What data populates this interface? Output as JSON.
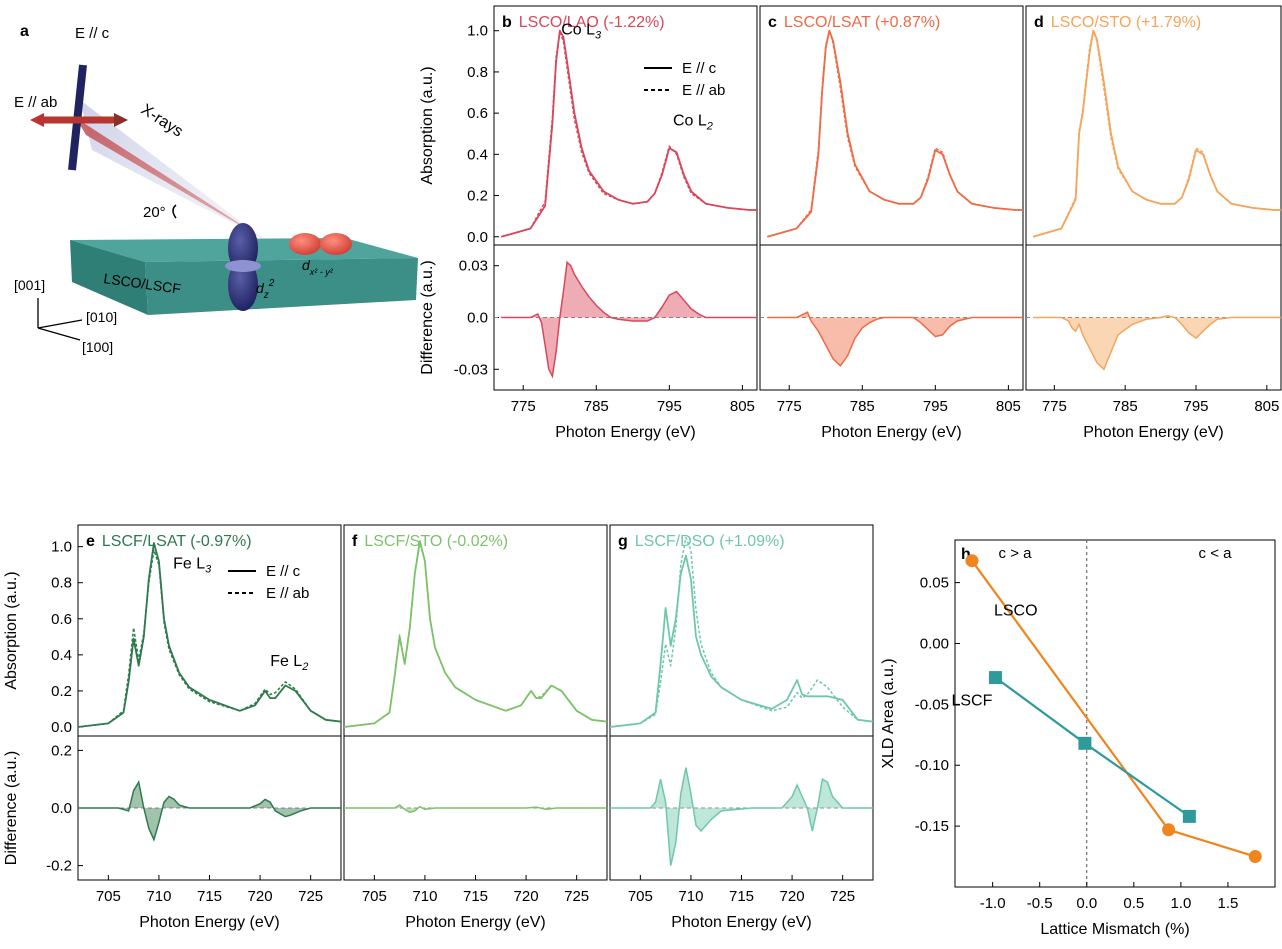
{
  "panel_a": {
    "label": "a",
    "e_c": "E // c",
    "e_ab": "E // ab",
    "xrays": "X-rays",
    "angle": "20°",
    "sample": "LSCO/LSCF",
    "dz2": "d",
    "dz2_sub": "z",
    "dz2_sup": "2",
    "dx2y2": "d",
    "dx2y2_sub": "x² - y²",
    "dx2y2_sup": "2",
    "axis_001": "[001]",
    "axis_010": "[010]",
    "axis_100": "[100]"
  },
  "legend": {
    "solid": "E // c",
    "dashed": "E // ab"
  },
  "chart_data": [
    {
      "id": "b",
      "type": "line",
      "label": "b",
      "title": "LSCO/LAO (-1.22%)",
      "color": "#d9475b",
      "xlabel": "Photon Energy (eV)",
      "xlim": [
        771,
        807
      ],
      "xticks": [
        775,
        785,
        795,
        805
      ],
      "abs_ylabel": "Absorption (a.u.)",
      "abs_ylim": [
        -0.04,
        1.12
      ],
      "abs_yticks": [
        0.0,
        0.2,
        0.4,
        0.6,
        0.8,
        1.0
      ],
      "diff_ylabel": "Difference (a.u.)",
      "diff_ylim": [
        -0.042,
        0.042
      ],
      "diff_yticks": [
        -0.03,
        0.0,
        0.03
      ],
      "annotations": [
        {
          "text": "Co L",
          "sub": "3",
          "x": 780.2,
          "y": 1.0
        },
        {
          "text": "Co L",
          "sub": "2",
          "x": 795.5,
          "y": 0.56
        }
      ],
      "absorption": {
        "x": [
          772,
          776,
          778,
          779,
          779.5,
          780,
          780.5,
          781,
          782,
          783,
          784,
          786,
          788,
          790,
          792,
          793,
          794,
          795,
          796,
          797,
          798,
          800,
          803,
          806,
          807
        ],
        "e_c": [
          0.0,
          0.04,
          0.15,
          0.55,
          0.85,
          1.0,
          0.97,
          0.85,
          0.6,
          0.43,
          0.32,
          0.22,
          0.18,
          0.16,
          0.17,
          0.21,
          0.3,
          0.43,
          0.41,
          0.3,
          0.22,
          0.16,
          0.14,
          0.13,
          0.13
        ],
        "e_ab": [
          0.0,
          0.04,
          0.17,
          0.58,
          0.87,
          0.99,
          0.95,
          0.82,
          0.57,
          0.41,
          0.31,
          0.21,
          0.18,
          0.16,
          0.17,
          0.21,
          0.31,
          0.44,
          0.4,
          0.29,
          0.21,
          0.16,
          0.14,
          0.13,
          0.13
        ]
      },
      "difference": {
        "x": [
          772,
          776,
          777,
          777.5,
          778,
          778.5,
          779,
          779.5,
          780,
          780.5,
          781,
          781.5,
          782,
          783,
          784,
          785,
          786,
          787,
          788,
          790,
          792,
          793,
          794,
          795,
          796,
          797,
          798,
          799,
          800,
          803,
          806,
          807
        ],
        "y": [
          0.0,
          0.0,
          0.002,
          -0.003,
          -0.016,
          -0.03,
          -0.034,
          -0.02,
          0.0,
          0.015,
          0.032,
          0.03,
          0.025,
          0.018,
          0.012,
          0.007,
          0.003,
          0.0,
          -0.001,
          -0.002,
          -0.002,
          0.0,
          0.006,
          0.013,
          0.015,
          0.01,
          0.005,
          0.002,
          0.0,
          0.0,
          0.0,
          0.0
        ]
      }
    },
    {
      "id": "c",
      "type": "line",
      "label": "c",
      "title": "LSCO/LSAT (+0.87%)",
      "color": "#ef6a45",
      "xlabel": "Photon Energy (eV)",
      "xlim": [
        771,
        807
      ],
      "xticks": [
        775,
        785,
        795,
        805
      ],
      "abs_ylim": [
        -0.04,
        1.12
      ],
      "diff_ylim": [
        -0.042,
        0.042
      ],
      "absorption": {
        "x": [
          772,
          776,
          778,
          779,
          779.5,
          780,
          780.5,
          781,
          782,
          783,
          784,
          786,
          788,
          790,
          792,
          793,
          794,
          795,
          796,
          797,
          798,
          800,
          803,
          806,
          807
        ],
        "e_c": [
          0.0,
          0.04,
          0.12,
          0.4,
          0.7,
          0.92,
          1.0,
          0.95,
          0.75,
          0.5,
          0.35,
          0.22,
          0.18,
          0.16,
          0.16,
          0.19,
          0.28,
          0.42,
          0.4,
          0.3,
          0.22,
          0.16,
          0.14,
          0.13,
          0.13
        ],
        "e_ab": [
          0.0,
          0.04,
          0.13,
          0.42,
          0.72,
          0.93,
          1.0,
          0.94,
          0.72,
          0.48,
          0.34,
          0.22,
          0.18,
          0.16,
          0.16,
          0.19,
          0.29,
          0.43,
          0.41,
          0.3,
          0.22,
          0.16,
          0.14,
          0.13,
          0.13
        ]
      },
      "difference": {
        "x": [
          772,
          776,
          777,
          777.5,
          778,
          779,
          780,
          781,
          782,
          783,
          784,
          785,
          786,
          787,
          788,
          790,
          792,
          793,
          794,
          795,
          796,
          797,
          798,
          800,
          803,
          806,
          807
        ],
        "y": [
          0.0,
          0.0,
          0.002,
          0.003,
          -0.002,
          -0.008,
          -0.016,
          -0.024,
          -0.028,
          -0.022,
          -0.012,
          -0.006,
          -0.003,
          -0.001,
          0.0,
          0.0,
          0.0,
          -0.003,
          -0.007,
          -0.011,
          -0.01,
          -0.005,
          -0.002,
          0.0,
          0.0,
          0.0,
          0.0
        ]
      }
    },
    {
      "id": "d",
      "type": "line",
      "label": "d",
      "title": "LSCO/STO (+1.79%)",
      "color": "#f5a45a",
      "xlabel": "Photon Energy (eV)",
      "xlim": [
        771,
        807
      ],
      "xticks": [
        775,
        785,
        795,
        805
      ],
      "abs_ylim": [
        -0.04,
        1.12
      ],
      "diff_ylim": [
        -0.042,
        0.042
      ],
      "absorption": {
        "x": [
          772,
          776,
          778,
          778.5,
          779,
          779.5,
          780,
          780.5,
          781,
          782,
          783,
          784,
          786,
          788,
          790,
          792,
          793,
          794,
          795,
          796,
          797,
          798,
          800,
          803,
          806,
          807
        ],
        "e_c": [
          0.0,
          0.04,
          0.18,
          0.5,
          0.6,
          0.75,
          0.9,
          1.0,
          0.96,
          0.75,
          0.5,
          0.34,
          0.22,
          0.18,
          0.16,
          0.16,
          0.19,
          0.28,
          0.42,
          0.4,
          0.3,
          0.22,
          0.16,
          0.14,
          0.13,
          0.13
        ],
        "e_ab": [
          0.0,
          0.04,
          0.19,
          0.51,
          0.61,
          0.77,
          0.92,
          1.0,
          0.95,
          0.72,
          0.48,
          0.33,
          0.22,
          0.18,
          0.16,
          0.16,
          0.19,
          0.29,
          0.43,
          0.41,
          0.3,
          0.22,
          0.16,
          0.14,
          0.13,
          0.13
        ]
      },
      "difference": {
        "x": [
          772,
          776,
          777,
          777.5,
          778,
          778.5,
          779,
          780,
          781,
          782,
          783,
          784,
          786,
          788,
          790,
          791,
          792,
          793,
          794,
          795,
          796,
          797,
          798,
          800,
          803,
          806,
          807
        ],
        "y": [
          0.0,
          0.0,
          -0.002,
          -0.006,
          -0.008,
          -0.004,
          -0.01,
          -0.018,
          -0.026,
          -0.03,
          -0.02,
          -0.01,
          -0.004,
          -0.001,
          0.0,
          0.001,
          0.0,
          -0.004,
          -0.009,
          -0.012,
          -0.008,
          -0.004,
          -0.001,
          0.0,
          0.0,
          0.0,
          0.0
        ]
      }
    },
    {
      "id": "e",
      "type": "line",
      "label": "e",
      "title": "LSCF/LSAT (-0.97%)",
      "color": "#2e7a4c",
      "xlabel": "Photon Energy (eV)",
      "xlim": [
        702,
        728
      ],
      "xticks": [
        705,
        710,
        715,
        720,
        725
      ],
      "abs_ylabel": "Absorption (a.u.)",
      "abs_ylim": [
        -0.05,
        1.12
      ],
      "abs_yticks": [
        0.0,
        0.2,
        0.4,
        0.6,
        0.8,
        1.0
      ],
      "diff_ylabel": "Difference (a.u.)",
      "diff_ylim": [
        -0.25,
        0.25
      ],
      "diff_yticks": [
        -0.2,
        0.0,
        0.2
      ],
      "annotations": [
        {
          "text": "Fe L",
          "sub": "3",
          "x": 711.4,
          "y": 0.9
        },
        {
          "text": "Fe L",
          "sub": "2",
          "x": 721.0,
          "y": 0.36
        }
      ],
      "absorption": {
        "x": [
          702,
          705,
          706.5,
          707,
          707.5,
          708,
          708.5,
          709,
          709.5,
          710,
          710.5,
          711,
          712,
          713,
          715,
          718,
          719.5,
          720.5,
          721,
          721.5,
          722.5,
          723.5,
          725,
          726.5,
          728
        ],
        "e_c": [
          0.0,
          0.02,
          0.08,
          0.25,
          0.49,
          0.34,
          0.5,
          0.82,
          1.02,
          0.92,
          0.6,
          0.45,
          0.3,
          0.22,
          0.15,
          0.09,
          0.12,
          0.2,
          0.16,
          0.16,
          0.23,
          0.2,
          0.09,
          0.04,
          0.03
        ],
        "e_ab": [
          0.0,
          0.02,
          0.09,
          0.29,
          0.55,
          0.37,
          0.52,
          0.8,
          0.98,
          0.9,
          0.58,
          0.43,
          0.29,
          0.21,
          0.14,
          0.09,
          0.13,
          0.21,
          0.18,
          0.19,
          0.25,
          0.21,
          0.09,
          0.04,
          0.03
        ]
      },
      "difference": {
        "x": [
          702,
          706,
          707,
          707.5,
          708,
          708.5,
          709,
          709.5,
          710,
          710.5,
          711,
          711.5,
          712,
          713,
          716,
          719,
          720,
          720.5,
          721,
          721.5,
          722,
          722.5,
          723,
          724,
          725,
          728
        ],
        "y": [
          0.0,
          0.0,
          -0.01,
          0.06,
          0.09,
          0.0,
          -0.07,
          -0.11,
          -0.05,
          0.02,
          0.04,
          0.03,
          0.01,
          0.0,
          0.0,
          0.0,
          0.015,
          0.03,
          0.02,
          -0.01,
          -0.02,
          -0.03,
          -0.025,
          -0.01,
          0.0,
          0.0
        ]
      }
    },
    {
      "id": "f",
      "type": "line",
      "label": "f",
      "title": "LSCF/STO (-0.02%)",
      "color": "#7cc26a",
      "xlabel": "Photon Energy (eV)",
      "xlim": [
        702,
        728
      ],
      "xticks": [
        705,
        710,
        715,
        720,
        725
      ],
      "abs_ylim": [
        -0.05,
        1.12
      ],
      "diff_ylim": [
        -0.25,
        0.25
      ],
      "absorption": {
        "x": [
          702,
          705,
          706.5,
          707,
          707.5,
          708,
          708.5,
          709,
          709.5,
          710,
          710.5,
          711,
          712,
          713,
          715,
          718,
          719.5,
          720.5,
          721,
          721.5,
          722.5,
          723.5,
          725,
          726.5,
          728
        ],
        "e_c": [
          0.0,
          0.02,
          0.08,
          0.28,
          0.5,
          0.35,
          0.55,
          0.85,
          1.03,
          0.92,
          0.6,
          0.44,
          0.3,
          0.22,
          0.15,
          0.09,
          0.12,
          0.2,
          0.16,
          0.16,
          0.23,
          0.2,
          0.09,
          0.04,
          0.03
        ],
        "e_ab": [
          0.0,
          0.02,
          0.08,
          0.28,
          0.51,
          0.35,
          0.55,
          0.85,
          1.02,
          0.92,
          0.6,
          0.44,
          0.3,
          0.22,
          0.15,
          0.09,
          0.12,
          0.2,
          0.16,
          0.17,
          0.23,
          0.2,
          0.09,
          0.04,
          0.03
        ]
      },
      "difference": {
        "x": [
          702,
          706,
          707,
          707.5,
          708,
          708.5,
          709,
          709.5,
          710,
          711,
          714,
          720,
          721,
          722,
          723,
          728
        ],
        "y": [
          0.0,
          0.0,
          0.0,
          0.01,
          -0.005,
          -0.015,
          -0.01,
          0.005,
          -0.005,
          0.0,
          0.0,
          0.0,
          0.003,
          -0.005,
          0.0,
          0.0
        ]
      }
    },
    {
      "id": "g",
      "type": "line",
      "label": "g",
      "title": "LSCF/DSO (+1.09%)",
      "color": "#6fc7ab",
      "xlabel": "Photon Energy (eV)",
      "xlim": [
        702,
        728
      ],
      "xticks": [
        705,
        710,
        715,
        720,
        725
      ],
      "abs_ylim": [
        -0.05,
        1.12
      ],
      "diff_ylim": [
        -0.25,
        0.25
      ],
      "absorption": {
        "x": [
          702,
          705,
          706.5,
          707,
          707.5,
          708,
          708.5,
          709,
          709.5,
          710,
          710.5,
          711,
          712,
          713,
          715,
          718,
          719.5,
          720.5,
          721,
          721.5,
          722.5,
          723.5,
          725,
          726.5,
          728
        ],
        "e_c": [
          0.0,
          0.02,
          0.08,
          0.35,
          0.66,
          0.45,
          0.6,
          0.85,
          0.95,
          0.82,
          0.5,
          0.4,
          0.28,
          0.22,
          0.15,
          0.1,
          0.15,
          0.26,
          0.18,
          0.17,
          0.17,
          0.17,
          0.15,
          0.04,
          0.03
        ],
        "e_ab": [
          0.0,
          0.02,
          0.07,
          0.25,
          0.46,
          0.34,
          0.55,
          0.9,
          1.05,
          0.98,
          0.65,
          0.46,
          0.3,
          0.22,
          0.15,
          0.09,
          0.11,
          0.19,
          0.16,
          0.18,
          0.26,
          0.22,
          0.11,
          0.04,
          0.03
        ]
      },
      "difference": {
        "x": [
          702,
          706,
          706.5,
          707,
          707.5,
          708,
          708.5,
          709,
          709.5,
          710,
          710.5,
          711,
          712,
          713,
          716,
          719,
          720,
          720.5,
          721,
          721.5,
          722,
          722.5,
          723,
          723.5,
          724,
          725,
          728
        ],
        "y": [
          0.0,
          0.0,
          0.02,
          0.1,
          0.02,
          -0.2,
          -0.12,
          0.05,
          0.14,
          0.05,
          -0.06,
          -0.08,
          -0.04,
          -0.01,
          0.0,
          0.0,
          0.04,
          0.08,
          0.04,
          0.0,
          -0.08,
          0.0,
          0.1,
          0.09,
          0.04,
          0.0,
          0.0
        ]
      }
    },
    {
      "id": "h",
      "type": "line",
      "label": "h",
      "xlabel": "Lattice Mismatch (%)",
      "ylabel": "XLD Area (a.u.)",
      "xlim": [
        -1.4,
        2.0
      ],
      "ylim": [
        -0.2,
        0.085
      ],
      "xticks": [
        -1.0,
        -0.5,
        0.0,
        0.5,
        1.0,
        1.5
      ],
      "yticks": [
        0.05,
        0.0,
        -0.05,
        -0.1,
        -0.15
      ],
      "region_labels": [
        "c > a",
        "c < a"
      ],
      "series": [
        {
          "name": "LSCO",
          "color": "#f0851e",
          "marker": "circle",
          "x": [
            -1.22,
            0.87,
            1.79
          ],
          "y": [
            0.068,
            -0.153,
            -0.175
          ]
        },
        {
          "name": "LSCF",
          "color": "#2e9a9a",
          "marker": "square",
          "x": [
            -0.97,
            -0.02,
            1.09
          ],
          "y": [
            -0.028,
            -0.082,
            -0.142
          ]
        }
      ]
    }
  ]
}
